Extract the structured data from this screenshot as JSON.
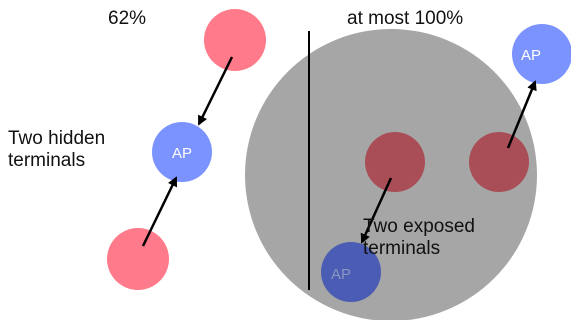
{
  "left": {
    "percent": "62%",
    "label_line1": "Two hidden",
    "label_line2": "terminals",
    "ap_label": "AP"
  },
  "right": {
    "percent": "at most 100%",
    "label_line1": "Two exposed",
    "label_line2": "terminals",
    "ap_top_label": "AP",
    "ap_bottom_label": "AP"
  },
  "colors": {
    "terminal": "#ff7a8a",
    "ap": "#7b93ff",
    "coverage_area": "#a6a6a6",
    "arrow": "#000000",
    "label_text": "#111111",
    "ap_text": "#ffffff"
  }
}
